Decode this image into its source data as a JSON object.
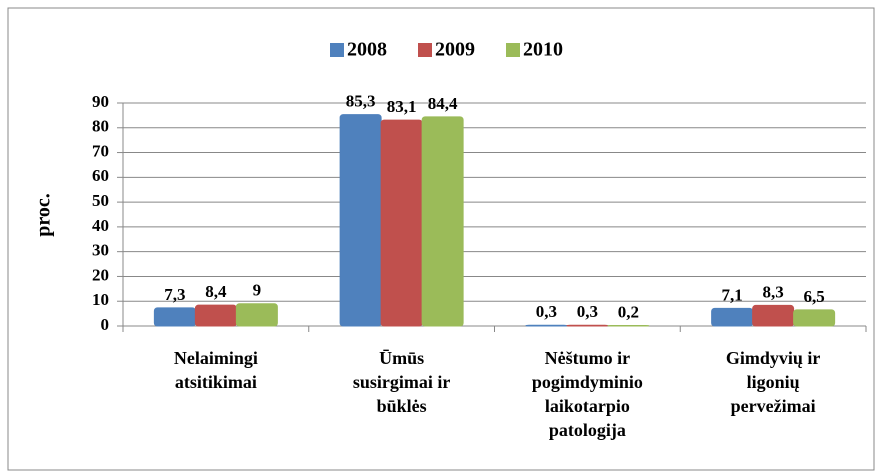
{
  "chart_data": {
    "type": "bar",
    "y_label": "proc.",
    "categories": [
      [
        "Nelaimingi",
        "atsitikimai"
      ],
      [
        "Ūmūs",
        "susirgimai ir",
        "būklės"
      ],
      [
        "Nėštumo ir",
        "pogimdyminio",
        "laikotarpio",
        "patologija"
      ],
      [
        "Gimdyvių ir",
        "ligonių",
        "pervežimai"
      ]
    ],
    "series": [
      {
        "name": "2008",
        "color": "#4f81bd",
        "values": [
          7.3,
          85.3,
          0.3,
          7.1
        ],
        "value_labels": [
          "7,3",
          "85,3",
          "0,3",
          "7,1"
        ]
      },
      {
        "name": "2009",
        "color": "#c0504d",
        "values": [
          8.4,
          83.1,
          0.3,
          8.3
        ],
        "value_labels": [
          "8,4",
          "83,1",
          "0,3",
          "8,3"
        ]
      },
      {
        "name": "2010",
        "color": "#9bbb59",
        "values": [
          9,
          84.4,
          0.2,
          6.5
        ],
        "value_labels": [
          "9",
          "84,4",
          "0,2",
          "6,5"
        ]
      }
    ],
    "ylim": [
      0,
      90
    ],
    "yticks": [
      0,
      10,
      20,
      30,
      40,
      50,
      60,
      70,
      80,
      90
    ],
    "grid": true,
    "legend": "top"
  }
}
